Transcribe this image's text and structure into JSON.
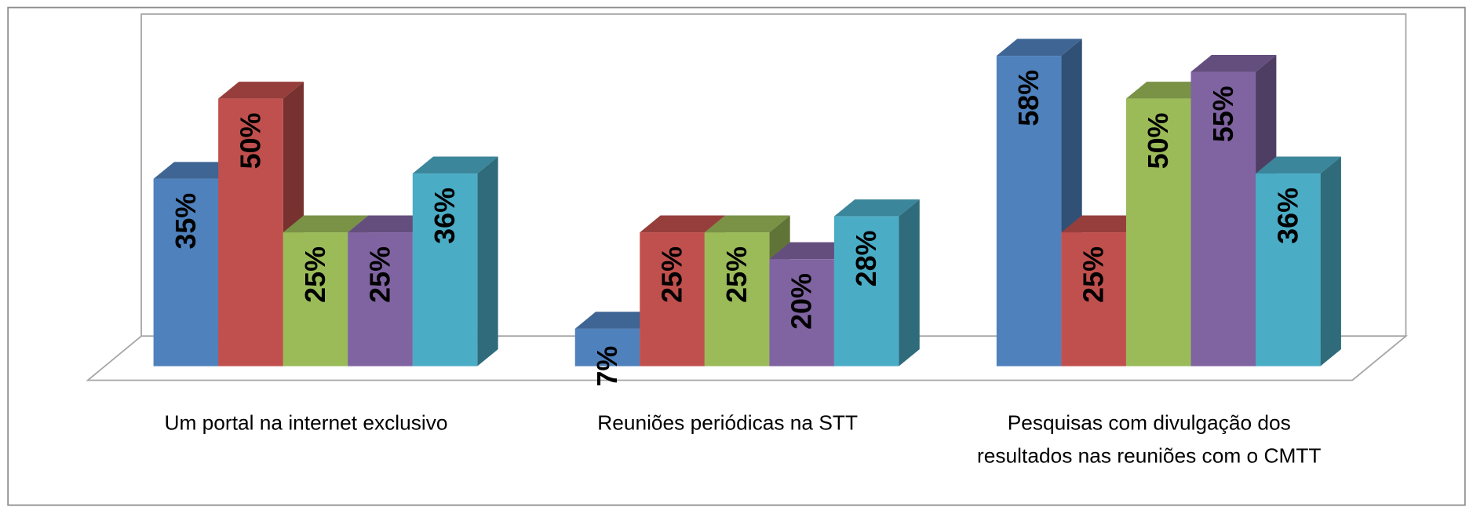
{
  "chart_data": {
    "type": "bar3d",
    "categories": [
      "Um portal na internet exclusivo",
      "Reuniões periódicas na STT",
      "Pesquisas com divulgação dos resultados nas reuniões com o CMTT"
    ],
    "ylim": [
      0,
      60
    ],
    "series": [
      {
        "color": "#4f81bd",
        "values": [
          35,
          7,
          58
        ],
        "value_labels": [
          "35%",
          "7%",
          "58%"
        ]
      },
      {
        "color": "#c0504d",
        "values": [
          50,
          25,
          25
        ],
        "value_labels": [
          "50%",
          "25%",
          "25%"
        ]
      },
      {
        "color": "#9bbb59",
        "values": [
          25,
          25,
          50
        ],
        "value_labels": [
          "25%",
          "25%",
          "50%"
        ]
      },
      {
        "color": "#8064a2",
        "values": [
          25,
          20,
          55
        ],
        "value_labels": [
          "25%",
          "20%",
          "55%"
        ]
      },
      {
        "color": "#4bacc6",
        "values": [
          36,
          28,
          36
        ],
        "value_labels": [
          "36%",
          "28%",
          "36%"
        ]
      }
    ]
  }
}
